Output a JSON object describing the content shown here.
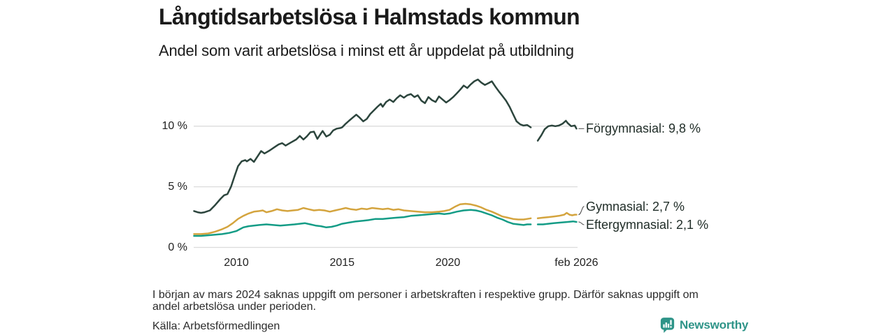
{
  "header": {
    "title": "Långtidsarbetslösa i Halmstads kommun",
    "subtitle": "Andel som varit arbetslösa i minst ett år uppdelat på utbildning"
  },
  "chart_data": {
    "type": "line",
    "title": "Långtidsarbetslösa i Halmstads kommun",
    "subtitle": "Andel som varit arbetslösa i minst ett år uppdelat på utbildning",
    "unit": "%",
    "grid": "horizontal",
    "x_range": [
      2008.0,
      2026.25
    ],
    "ylim": [
      0,
      14.5
    ],
    "y_ticks": [
      {
        "value": 0,
        "label": "0 %"
      },
      {
        "value": 5,
        "label": "5 %"
      },
      {
        "value": 10,
        "label": "10 %"
      }
    ],
    "x_ticks": [
      {
        "year": 2010,
        "label": "2010"
      },
      {
        "year": 2015,
        "label": "2015"
      },
      {
        "year": 2020,
        "label": "2020"
      },
      {
        "year": 2026.08,
        "label": "feb 2026"
      }
    ],
    "data_gap": {
      "from": 2023.92,
      "to": 2024.25,
      "reason": "saknas uppgift (mars 2024)"
    },
    "series": [
      {
        "name": "Förgymnasial",
        "label": "Förgymnasial: 9,8 %",
        "end_value_label": "9,8 %",
        "color": "#2c453d",
        "points": [
          [
            2008.0,
            3.0
          ],
          [
            2008.17,
            2.9
          ],
          [
            2008.33,
            2.85
          ],
          [
            2008.5,
            2.9
          ],
          [
            2008.75,
            3.05
          ],
          [
            2009.0,
            3.5
          ],
          [
            2009.25,
            4.0
          ],
          [
            2009.42,
            4.3
          ],
          [
            2009.58,
            4.4
          ],
          [
            2009.75,
            5.0
          ],
          [
            2009.92,
            5.9
          ],
          [
            2010.08,
            6.7
          ],
          [
            2010.25,
            7.1
          ],
          [
            2010.42,
            7.2
          ],
          [
            2010.5,
            7.1
          ],
          [
            2010.67,
            7.3
          ],
          [
            2010.83,
            7.05
          ],
          [
            2011.0,
            7.5
          ],
          [
            2011.17,
            7.95
          ],
          [
            2011.33,
            7.75
          ],
          [
            2011.58,
            8.0
          ],
          [
            2011.83,
            8.3
          ],
          [
            2012.0,
            8.5
          ],
          [
            2012.17,
            8.6
          ],
          [
            2012.33,
            8.4
          ],
          [
            2012.58,
            8.65
          ],
          [
            2012.83,
            8.9
          ],
          [
            2013.0,
            9.2
          ],
          [
            2013.17,
            8.9
          ],
          [
            2013.33,
            9.15
          ],
          [
            2013.5,
            9.5
          ],
          [
            2013.67,
            9.55
          ],
          [
            2013.83,
            8.95
          ],
          [
            2014.0,
            9.4
          ],
          [
            2014.08,
            9.6
          ],
          [
            2014.25,
            9.15
          ],
          [
            2014.42,
            9.3
          ],
          [
            2014.58,
            9.65
          ],
          [
            2014.75,
            9.8
          ],
          [
            2014.92,
            9.85
          ],
          [
            2015.0,
            9.9
          ],
          [
            2015.17,
            10.2
          ],
          [
            2015.33,
            10.45
          ],
          [
            2015.5,
            10.7
          ],
          [
            2015.67,
            10.95
          ],
          [
            2015.83,
            10.7
          ],
          [
            2016.0,
            10.4
          ],
          [
            2016.17,
            10.6
          ],
          [
            2016.33,
            11.0
          ],
          [
            2016.5,
            11.3
          ],
          [
            2016.67,
            11.6
          ],
          [
            2016.83,
            11.85
          ],
          [
            2016.92,
            11.6
          ],
          [
            2017.08,
            12.0
          ],
          [
            2017.25,
            12.2
          ],
          [
            2017.42,
            12.0
          ],
          [
            2017.58,
            12.3
          ],
          [
            2017.75,
            12.55
          ],
          [
            2017.92,
            12.35
          ],
          [
            2018.08,
            12.55
          ],
          [
            2018.25,
            12.65
          ],
          [
            2018.42,
            12.4
          ],
          [
            2018.58,
            12.55
          ],
          [
            2018.75,
            12.1
          ],
          [
            2018.92,
            11.9
          ],
          [
            2019.08,
            12.4
          ],
          [
            2019.25,
            12.15
          ],
          [
            2019.42,
            12.0
          ],
          [
            2019.58,
            12.45
          ],
          [
            2019.75,
            12.2
          ],
          [
            2019.92,
            11.95
          ],
          [
            2020.08,
            12.15
          ],
          [
            2020.25,
            12.4
          ],
          [
            2020.42,
            12.7
          ],
          [
            2020.58,
            13.0
          ],
          [
            2020.75,
            13.35
          ],
          [
            2020.92,
            13.15
          ],
          [
            2021.08,
            13.45
          ],
          [
            2021.25,
            13.7
          ],
          [
            2021.42,
            13.85
          ],
          [
            2021.58,
            13.6
          ],
          [
            2021.75,
            13.4
          ],
          [
            2021.92,
            13.55
          ],
          [
            2022.08,
            13.7
          ],
          [
            2022.25,
            13.25
          ],
          [
            2022.42,
            12.85
          ],
          [
            2022.58,
            12.5
          ],
          [
            2022.75,
            12.1
          ],
          [
            2022.92,
            11.6
          ],
          [
            2023.08,
            11.0
          ],
          [
            2023.25,
            10.4
          ],
          [
            2023.42,
            10.15
          ],
          [
            2023.58,
            10.05
          ],
          [
            2023.75,
            10.1
          ],
          [
            2023.92,
            9.9
          ],
          null,
          [
            2024.25,
            8.8
          ],
          [
            2024.42,
            9.25
          ],
          [
            2024.58,
            9.75
          ],
          [
            2024.75,
            10.0
          ],
          [
            2024.92,
            10.05
          ],
          [
            2025.08,
            10.0
          ],
          [
            2025.25,
            10.05
          ],
          [
            2025.42,
            10.2
          ],
          [
            2025.58,
            10.45
          ],
          [
            2025.67,
            10.25
          ],
          [
            2025.83,
            10.0
          ],
          [
            2026.0,
            10.05
          ],
          [
            2026.08,
            9.8
          ]
        ]
      },
      {
        "name": "Gymnasial",
        "label": "Gymnasial: 2,7 %",
        "end_value_label": "2,7 %",
        "color": "#d4a43e",
        "points": [
          [
            2008.0,
            1.1
          ],
          [
            2008.33,
            1.1
          ],
          [
            2008.67,
            1.15
          ],
          [
            2009.0,
            1.3
          ],
          [
            2009.33,
            1.5
          ],
          [
            2009.58,
            1.7
          ],
          [
            2009.83,
            2.0
          ],
          [
            2010.08,
            2.35
          ],
          [
            2010.33,
            2.6
          ],
          [
            2010.58,
            2.8
          ],
          [
            2010.83,
            2.95
          ],
          [
            2011.08,
            3.0
          ],
          [
            2011.25,
            3.05
          ],
          [
            2011.42,
            2.9
          ],
          [
            2011.67,
            3.0
          ],
          [
            2011.92,
            3.15
          ],
          [
            2012.17,
            3.05
          ],
          [
            2012.42,
            3.0
          ],
          [
            2012.67,
            3.05
          ],
          [
            2012.92,
            3.1
          ],
          [
            2013.17,
            3.25
          ],
          [
            2013.42,
            3.15
          ],
          [
            2013.67,
            3.05
          ],
          [
            2013.92,
            3.1
          ],
          [
            2014.17,
            3.05
          ],
          [
            2014.42,
            2.95
          ],
          [
            2014.67,
            3.05
          ],
          [
            2014.92,
            3.15
          ],
          [
            2015.17,
            3.25
          ],
          [
            2015.42,
            3.15
          ],
          [
            2015.67,
            3.1
          ],
          [
            2015.92,
            3.2
          ],
          [
            2016.17,
            3.15
          ],
          [
            2016.42,
            3.25
          ],
          [
            2016.67,
            3.2
          ],
          [
            2016.92,
            3.15
          ],
          [
            2017.17,
            3.2
          ],
          [
            2017.42,
            3.1
          ],
          [
            2017.67,
            3.15
          ],
          [
            2017.92,
            3.05
          ],
          [
            2018.25,
            3.0
          ],
          [
            2018.58,
            2.95
          ],
          [
            2018.92,
            2.9
          ],
          [
            2019.25,
            2.9
          ],
          [
            2019.58,
            2.95
          ],
          [
            2019.83,
            3.0
          ],
          [
            2020.08,
            3.1
          ],
          [
            2020.33,
            3.35
          ],
          [
            2020.58,
            3.55
          ],
          [
            2020.83,
            3.6
          ],
          [
            2021.08,
            3.55
          ],
          [
            2021.33,
            3.45
          ],
          [
            2021.58,
            3.3
          ],
          [
            2021.83,
            3.1
          ],
          [
            2022.08,
            2.95
          ],
          [
            2022.33,
            2.75
          ],
          [
            2022.58,
            2.55
          ],
          [
            2022.83,
            2.45
          ],
          [
            2023.08,
            2.35
          ],
          [
            2023.33,
            2.3
          ],
          [
            2023.58,
            2.3
          ],
          [
            2023.75,
            2.35
          ],
          [
            2023.92,
            2.4
          ],
          null,
          [
            2024.25,
            2.4
          ],
          [
            2024.5,
            2.45
          ],
          [
            2024.75,
            2.5
          ],
          [
            2025.0,
            2.55
          ],
          [
            2025.25,
            2.6
          ],
          [
            2025.5,
            2.7
          ],
          [
            2025.62,
            2.85
          ],
          [
            2025.75,
            2.7
          ],
          [
            2025.88,
            2.65
          ],
          [
            2026.0,
            2.7
          ],
          [
            2026.08,
            2.7
          ]
        ]
      },
      {
        "name": "Eftergymnasial",
        "label": "Eftergymnasial: 2,1 %",
        "end_value_label": "2,1 %",
        "color": "#149c86",
        "points": [
          [
            2008.0,
            0.95
          ],
          [
            2008.33,
            0.95
          ],
          [
            2008.67,
            1.0
          ],
          [
            2009.0,
            1.05
          ],
          [
            2009.33,
            1.1
          ],
          [
            2009.67,
            1.2
          ],
          [
            2010.0,
            1.35
          ],
          [
            2010.17,
            1.5
          ],
          [
            2010.33,
            1.65
          ],
          [
            2010.58,
            1.75
          ],
          [
            2010.83,
            1.8
          ],
          [
            2011.08,
            1.85
          ],
          [
            2011.42,
            1.9
          ],
          [
            2011.75,
            1.85
          ],
          [
            2012.08,
            1.8
          ],
          [
            2012.42,
            1.85
          ],
          [
            2012.75,
            1.9
          ],
          [
            2013.0,
            1.95
          ],
          [
            2013.25,
            2.0
          ],
          [
            2013.5,
            1.9
          ],
          [
            2013.75,
            1.8
          ],
          [
            2014.0,
            1.75
          ],
          [
            2014.25,
            1.65
          ],
          [
            2014.5,
            1.7
          ],
          [
            2014.75,
            1.8
          ],
          [
            2015.0,
            1.95
          ],
          [
            2015.33,
            2.05
          ],
          [
            2015.67,
            2.15
          ],
          [
            2016.0,
            2.2
          ],
          [
            2016.25,
            2.25
          ],
          [
            2016.58,
            2.35
          ],
          [
            2016.92,
            2.35
          ],
          [
            2017.25,
            2.4
          ],
          [
            2017.58,
            2.45
          ],
          [
            2017.92,
            2.5
          ],
          [
            2018.25,
            2.6
          ],
          [
            2018.58,
            2.65
          ],
          [
            2018.92,
            2.7
          ],
          [
            2019.25,
            2.75
          ],
          [
            2019.58,
            2.8
          ],
          [
            2019.83,
            2.75
          ],
          [
            2020.08,
            2.8
          ],
          [
            2020.42,
            2.95
          ],
          [
            2020.75,
            3.05
          ],
          [
            2021.08,
            3.1
          ],
          [
            2021.33,
            3.05
          ],
          [
            2021.58,
            2.95
          ],
          [
            2021.83,
            2.8
          ],
          [
            2022.08,
            2.65
          ],
          [
            2022.33,
            2.45
          ],
          [
            2022.58,
            2.3
          ],
          [
            2022.83,
            2.1
          ],
          [
            2023.08,
            1.95
          ],
          [
            2023.33,
            1.9
          ],
          [
            2023.58,
            1.85
          ],
          [
            2023.75,
            1.9
          ],
          [
            2023.92,
            1.9
          ],
          null,
          [
            2024.25,
            1.9
          ],
          [
            2024.5,
            1.9
          ],
          [
            2024.75,
            1.95
          ],
          [
            2025.0,
            2.0
          ],
          [
            2025.33,
            2.05
          ],
          [
            2025.67,
            2.1
          ],
          [
            2025.92,
            2.15
          ],
          [
            2026.08,
            2.1
          ]
        ]
      }
    ],
    "colors": {
      "grid": "#dcdcdc",
      "connector": "#4a4a4a"
    }
  },
  "footer": {
    "note_line1": "I början av mars 2024 saknas uppgift om personer i arbetskraften i respektive grupp. Därför saknas uppgift om",
    "note_line2": "andel arbetslösa under perioden.",
    "source": "Källa: Arbetsförmedlingen",
    "brand": "Newsworthy",
    "brand_color": "#2e9488"
  }
}
